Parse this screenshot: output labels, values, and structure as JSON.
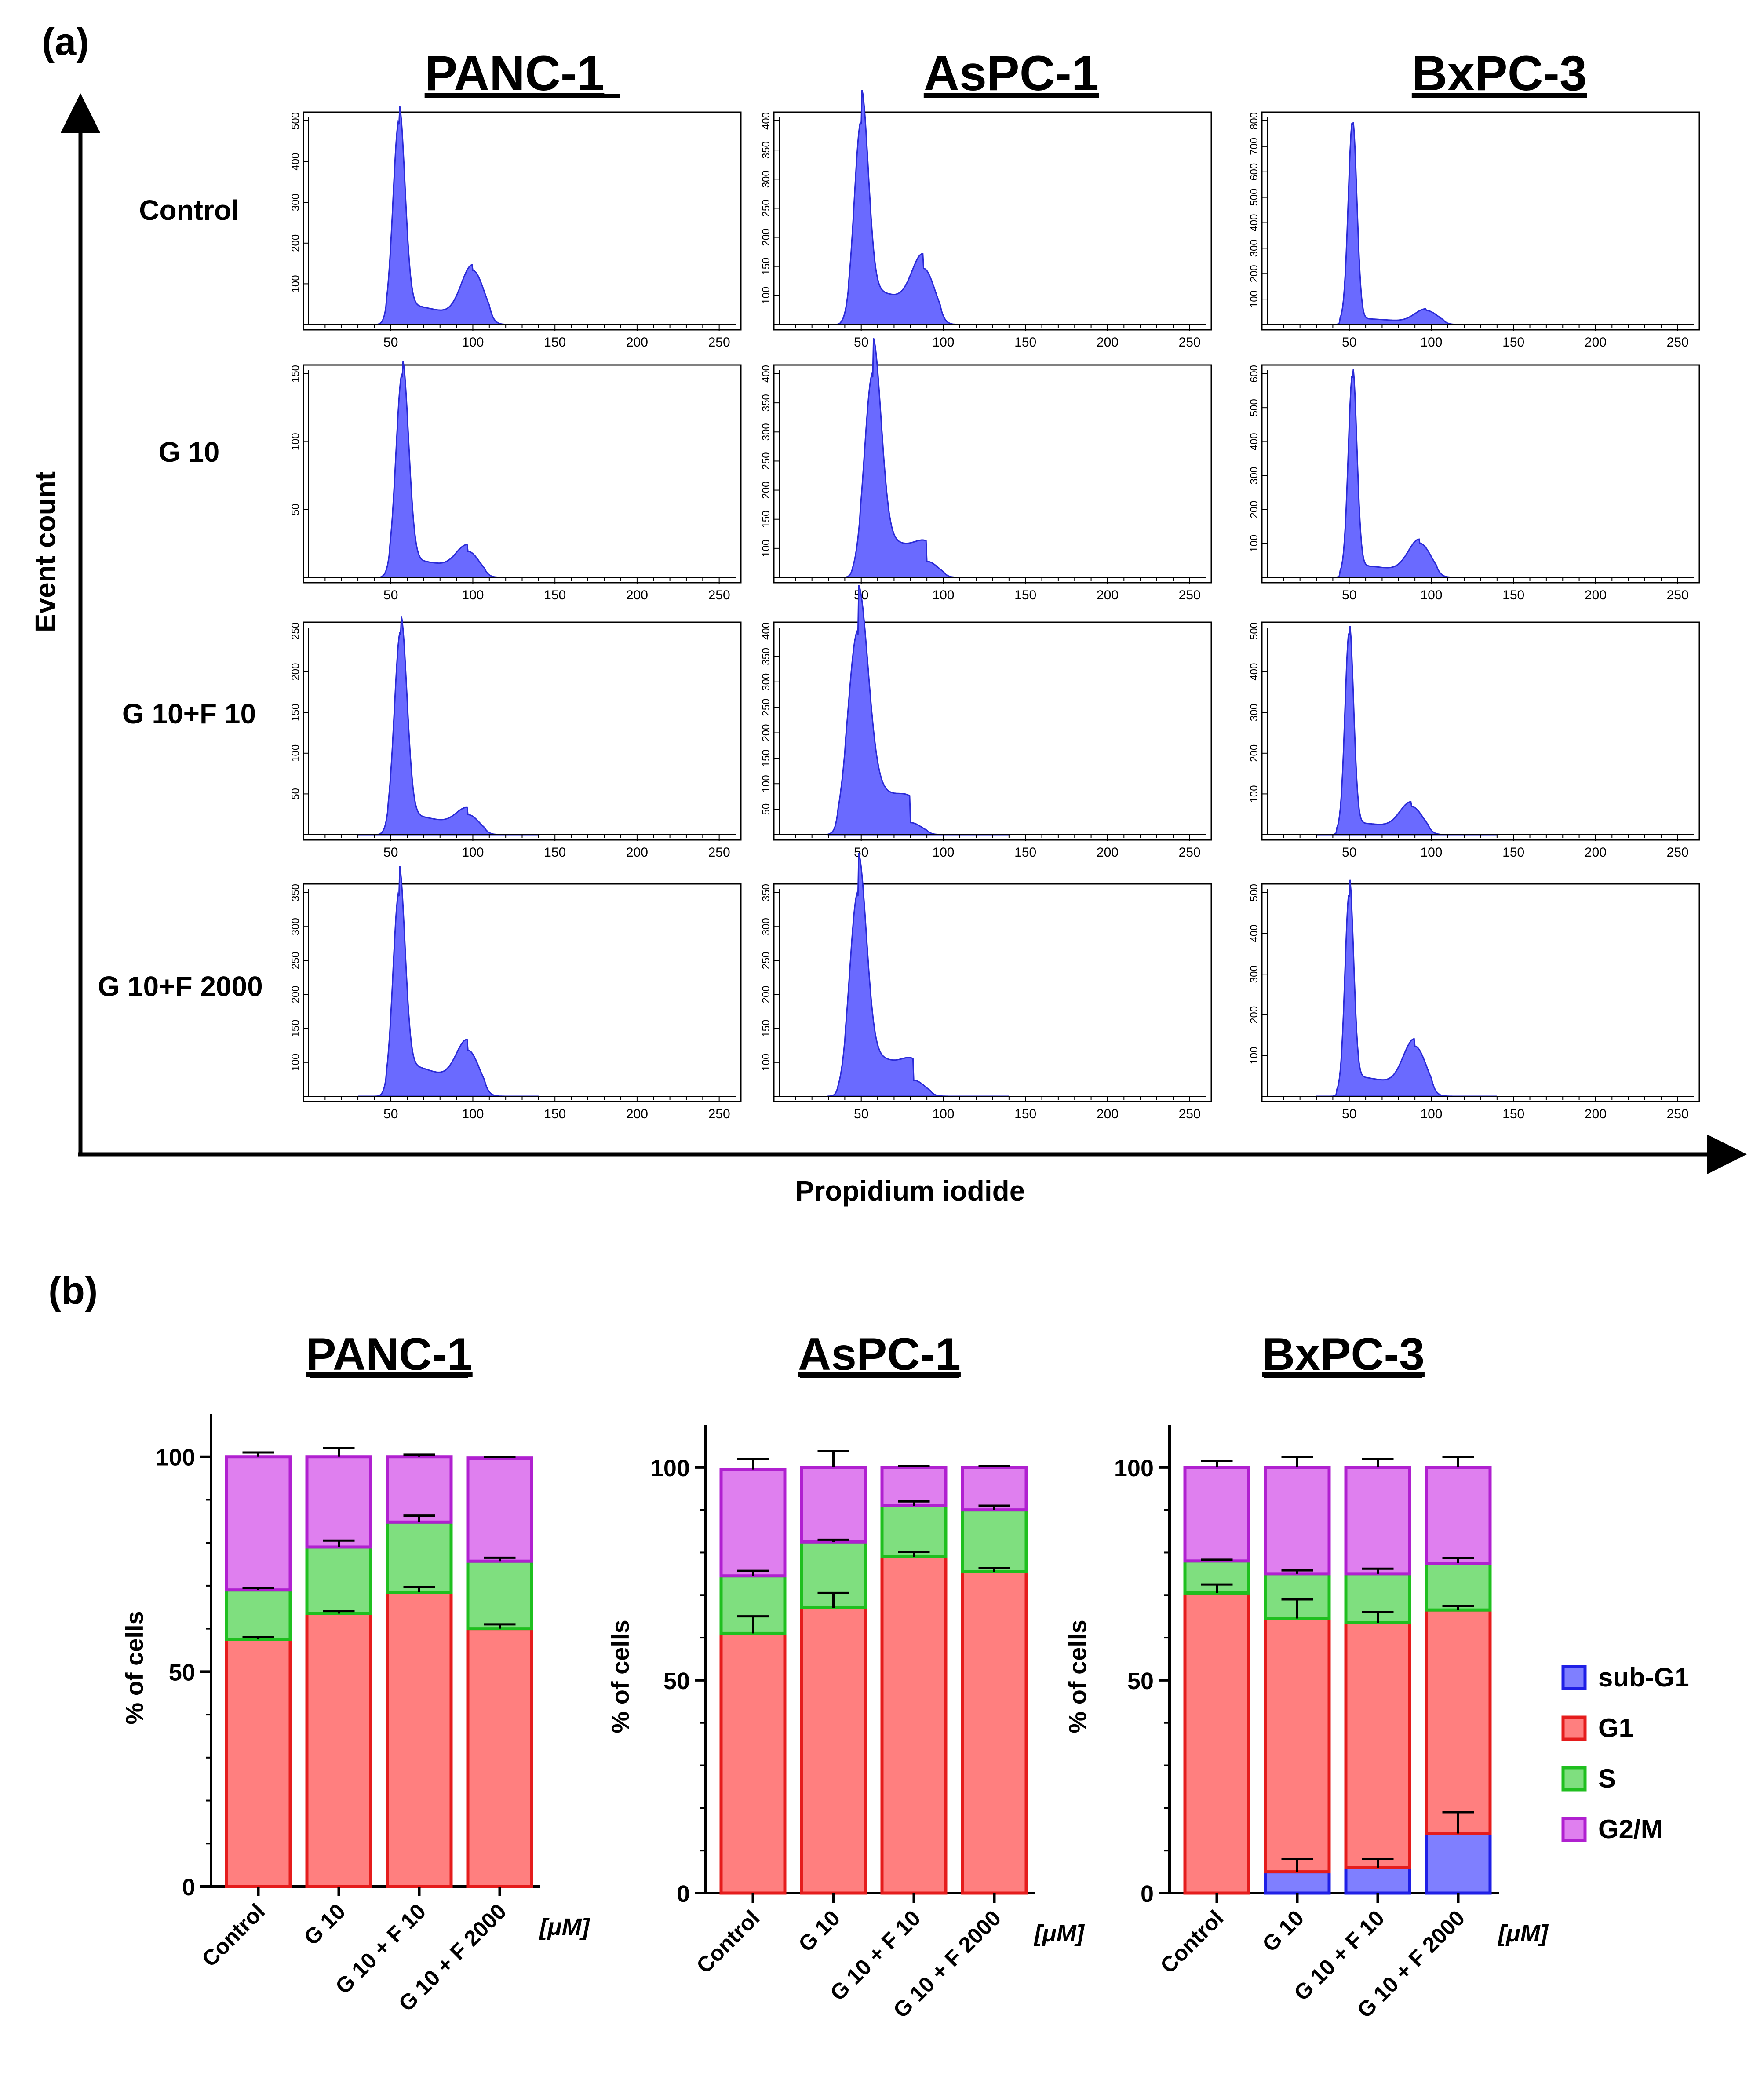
{
  "panel_a": {
    "label": "(a)",
    "y_axis_label": "Event count",
    "x_axis_label": "Propidium iodide",
    "columns": [
      "PANC-1",
      "AsPC-1",
      "BxPC-3"
    ],
    "rows": [
      "Control",
      "G 10",
      "G 10+F 10",
      "G 10+F 2000"
    ],
    "x_ticks": [
      "50",
      "100",
      "150",
      "200",
      "250"
    ],
    "y_ticks": [
      [
        [
          "100",
          "200",
          "300",
          "400",
          "500"
        ],
        [
          "100",
          "150",
          "200",
          "250",
          "300",
          "350",
          "400"
        ],
        [
          "100",
          "200",
          "300",
          "400",
          "500",
          "600",
          "700",
          "800"
        ]
      ],
      [
        [
          "50",
          "100",
          "150"
        ],
        [
          "100",
          "150",
          "200",
          "250",
          "300",
          "350",
          "400"
        ],
        [
          "100",
          "200",
          "300",
          "400",
          "500",
          "600"
        ]
      ],
      [
        [
          "50",
          "100",
          "150",
          "200",
          "250"
        ],
        [
          "50",
          "100",
          "150",
          "200",
          "250",
          "300",
          "350",
          "400"
        ],
        [
          "100",
          "200",
          "300",
          "400",
          "500"
        ]
      ],
      [
        [
          "100",
          "150",
          "200",
          "250",
          "300",
          "350"
        ],
        [
          "100",
          "150",
          "200",
          "250",
          "300",
          "350"
        ],
        [
          "100",
          "200",
          "300",
          "400",
          "500"
        ]
      ]
    ],
    "fill_color": "#6a6aff",
    "stroke_color": "#2b2bd6"
  },
  "panel_b": {
    "label": "(b)",
    "y_axis_label": "% of cells",
    "unit_label": "[μM]",
    "legend": [
      "sub-G1",
      "G1",
      "S",
      "G2/M"
    ]
  },
  "chart_data": [
    {
      "type": "bar",
      "stacked": true,
      "title": "PANC-1",
      "xlabel": "[μM]",
      "ylabel": "% of cells",
      "ylim": [
        0,
        110
      ],
      "yticks": [
        0,
        50,
        100
      ],
      "categories": [
        "Control",
        "G 10",
        "G 10 + F 10",
        "G 10 + F 2000"
      ],
      "series": [
        {
          "name": "sub-G1",
          "values": [
            0,
            0,
            0,
            0
          ],
          "errors": [
            0,
            0,
            0,
            0
          ],
          "fill": "#7f7fff",
          "stroke": "#1f1fe6"
        },
        {
          "name": "G1",
          "values": [
            57.5,
            63.5,
            68.5,
            60
          ],
          "errors": [
            0.5,
            0.6,
            1.2,
            1
          ],
          "fill": "#ff7f7f",
          "stroke": "#e51c1c"
        },
        {
          "name": "S",
          "values": [
            11.5,
            15.5,
            16.3,
            15.7
          ],
          "errors": [
            0.5,
            1.5,
            1.5,
            0.8
          ],
          "fill": "#7fdf7f",
          "stroke": "#1fbf1f"
        },
        {
          "name": "G2/M",
          "values": [
            31,
            21,
            15.2,
            24
          ],
          "errors": [
            1,
            2,
            0.5,
            0.3
          ],
          "fill": "#df7fef",
          "stroke": "#b020d0"
        }
      ]
    },
    {
      "type": "bar",
      "stacked": true,
      "title": "AsPC-1",
      "xlabel": "[μM]",
      "ylabel": "% of cells",
      "ylim": [
        0,
        110
      ],
      "yticks": [
        0,
        50,
        100
      ],
      "categories": [
        "Control",
        "G 10",
        "G 10 + F 10",
        "G 10 + F 2000"
      ],
      "series": [
        {
          "name": "sub-G1",
          "values": [
            0,
            0,
            0,
            0
          ],
          "errors": [
            0,
            0,
            0,
            0
          ],
          "fill": "#7f7fff",
          "stroke": "#1f1fe6"
        },
        {
          "name": "G1",
          "values": [
            61,
            67,
            79,
            75.5
          ],
          "errors": [
            4,
            3.5,
            1.2,
            0.8
          ],
          "fill": "#ff7f7f",
          "stroke": "#e51c1c"
        },
        {
          "name": "S",
          "values": [
            13.5,
            15.5,
            12,
            14.5
          ],
          "errors": [
            1.2,
            0.5,
            1,
            1
          ],
          "fill": "#7fdf7f",
          "stroke": "#1fbf1f"
        },
        {
          "name": "G2/M",
          "values": [
            25,
            17.5,
            9,
            10
          ],
          "errors": [
            2.5,
            3.8,
            0.3,
            0.3
          ],
          "fill": "#df7fef",
          "stroke": "#b020d0"
        }
      ]
    },
    {
      "type": "bar",
      "stacked": true,
      "title": "BxPC-3",
      "xlabel": "[μM]",
      "ylabel": "% of cells",
      "ylim": [
        0,
        110
      ],
      "yticks": [
        0,
        50,
        100
      ],
      "categories": [
        "Control",
        "G 10",
        "G 10 + F 10",
        "G 10 + F 2000"
      ],
      "series": [
        {
          "name": "sub-G1",
          "values": [
            0,
            5,
            6,
            14
          ],
          "errors": [
            0,
            3,
            2,
            5
          ],
          "fill": "#7f7fff",
          "stroke": "#1f1fe6"
        },
        {
          "name": "G1",
          "values": [
            70.5,
            59.5,
            57.5,
            52.5
          ],
          "errors": [
            2,
            4.5,
            2.5,
            1
          ],
          "fill": "#ff7f7f",
          "stroke": "#e51c1c"
        },
        {
          "name": "S",
          "values": [
            7.5,
            10.5,
            11.5,
            11
          ],
          "errors": [
            0.3,
            0.8,
            1.2,
            1.2
          ],
          "fill": "#7fdf7f",
          "stroke": "#1fbf1f"
        },
        {
          "name": "G2/M",
          "values": [
            22,
            25,
            25,
            22.5
          ],
          "errors": [
            1.5,
            2.5,
            2,
            2.5
          ],
          "fill": "#df7fef",
          "stroke": "#b020d0"
        }
      ]
    }
  ]
}
